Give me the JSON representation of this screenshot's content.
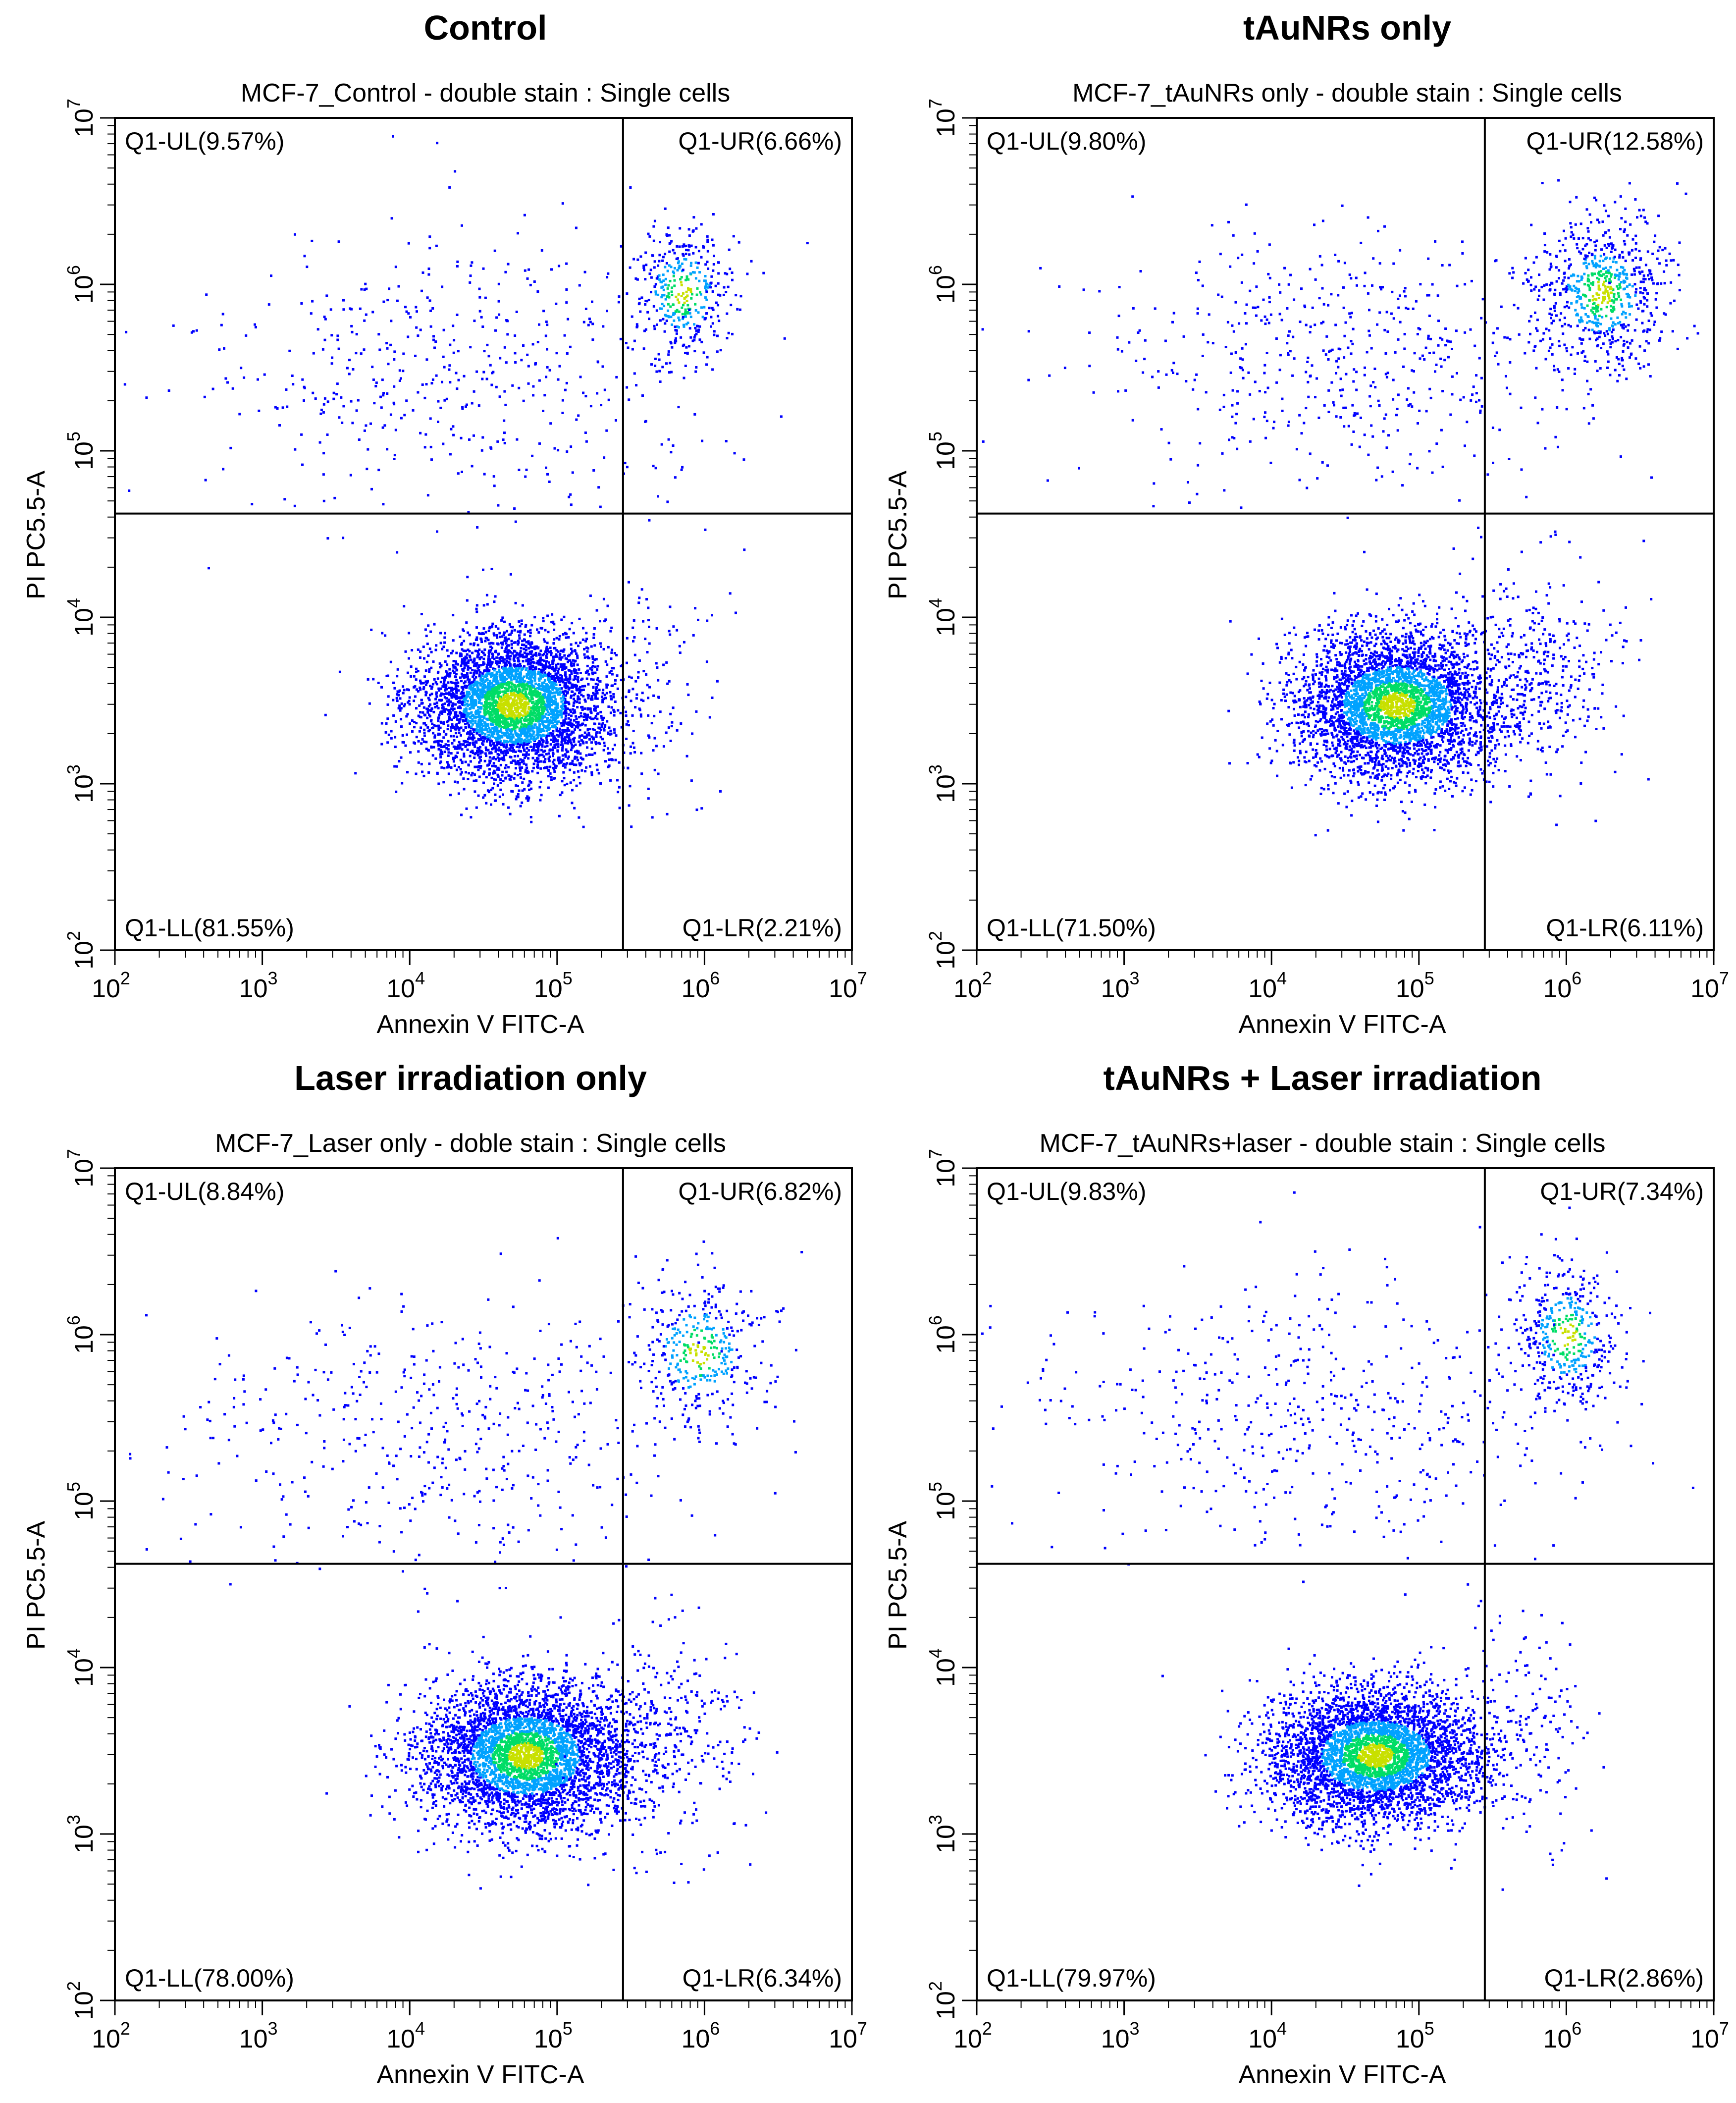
{
  "figure": {
    "panels_count": 4
  },
  "chart_data": [
    {
      "type": "scatter",
      "panel_title": "Control",
      "title": "MCF-7_Control - double stain : Single cells",
      "xlabel": "Annexin V FITC-A",
      "ylabel": "PI PC5.5-A",
      "xscale": "log",
      "yscale": "log",
      "xlim": [
        100,
        10000000
      ],
      "ylim": [
        100,
        10000000
      ],
      "xticks": [
        100,
        1000,
        10000,
        100000,
        1000000,
        10000000
      ],
      "yticks": [
        100,
        1000,
        10000,
        100000,
        1000000,
        10000000
      ],
      "quadrant_gate": {
        "x": 280000,
        "y": 42000
      },
      "quadrant_labels": {
        "UL": "Q1-UL(9.57%)",
        "UR": "Q1-UR(6.66%)",
        "LL": "Q1-LL(81.55%)",
        "LR": "Q1-LR(2.21%)"
      },
      "quadrant_percentages": {
        "UL": 9.57,
        "UR": 6.66,
        "LL": 81.55,
        "LR": 2.21
      },
      "clusters": [
        {
          "name": "main-population",
          "center": [
            50000,
            3000
          ],
          "spread_decades": [
            0.33,
            0.22
          ],
          "count": 4200
        },
        {
          "name": "upper-right-population",
          "center": [
            700000,
            900000
          ],
          "spread_decades": [
            0.18,
            0.2
          ],
          "count": 380
        },
        {
          "name": "upper-left-scatter",
          "center": [
            20000,
            300000
          ],
          "spread_decades": [
            0.9,
            0.4
          ],
          "count": 520
        },
        {
          "name": "lower-right-scatter",
          "center": [
            450000,
            4000
          ],
          "spread_decades": [
            0.22,
            0.35
          ],
          "count": 110
        }
      ],
      "colormap": [
        "#0000ff",
        "#00a2ff",
        "#00dd66",
        "#c8e000"
      ]
    },
    {
      "type": "scatter",
      "panel_title": "tAuNRs only",
      "title": "MCF-7_tAuNRs only - double stain : Single cells",
      "xlabel": "Annexin V FITC-A",
      "ylabel": "PI PC5.5-A",
      "xscale": "log",
      "yscale": "log",
      "xlim": [
        100,
        10000000
      ],
      "ylim": [
        100,
        10000000
      ],
      "xticks": [
        100,
        1000,
        10000,
        100000,
        1000000,
        10000000
      ],
      "yticks": [
        100,
        1000,
        10000,
        100000,
        1000000,
        10000000
      ],
      "quadrant_gate": {
        "x": 280000,
        "y": 42000
      },
      "quadrant_labels": {
        "UL": "Q1-UL(9.80%)",
        "UR": "Q1-UR(12.58%)",
        "LL": "Q1-LL(71.50%)",
        "LR": "Q1-LR(6.11%)"
      },
      "quadrant_percentages": {
        "UL": 9.8,
        "UR": 12.58,
        "LL": 71.5,
        "LR": 6.11
      },
      "clusters": [
        {
          "name": "main-population",
          "center": [
            70000,
            3000
          ],
          "spread_decades": [
            0.35,
            0.22
          ],
          "count": 3900
        },
        {
          "name": "upper-right-population",
          "center": [
            1700000,
            900000
          ],
          "spread_decades": [
            0.22,
            0.22
          ],
          "count": 700
        },
        {
          "name": "upper-left-scatter",
          "center": [
            30000,
            350000
          ],
          "spread_decades": [
            0.85,
            0.38
          ],
          "count": 540
        },
        {
          "name": "lower-right-scatter",
          "center": [
            700000,
            5000
          ],
          "spread_decades": [
            0.3,
            0.35
          ],
          "count": 330
        }
      ],
      "colormap": [
        "#0000ff",
        "#00a2ff",
        "#00dd66",
        "#c8e000"
      ]
    },
    {
      "type": "scatter",
      "panel_title": "Laser irradiation only",
      "title": "MCF-7_Laser only - doble stain : Single cells",
      "xlabel": "Annexin V FITC-A",
      "ylabel": "PI PC5.5-A",
      "xscale": "log",
      "yscale": "log",
      "xlim": [
        100,
        10000000
      ],
      "ylim": [
        100,
        10000000
      ],
      "xticks": [
        100,
        1000,
        10000,
        100000,
        1000000,
        10000000
      ],
      "yticks": [
        100,
        1000,
        10000,
        100000,
        1000000,
        10000000
      ],
      "quadrant_gate": {
        "x": 280000,
        "y": 42000
      },
      "quadrant_labels": {
        "UL": "Q1-UL(8.84%)",
        "UR": "Q1-UR(6.82%)",
        "LL": "Q1-LL(78.00%)",
        "LR": "Q1-LR(6.34%)"
      },
      "quadrant_percentages": {
        "UL": 8.84,
        "UR": 6.82,
        "LL": 78.0,
        "LR": 6.34
      },
      "clusters": [
        {
          "name": "main-population",
          "center": [
            60000,
            3000
          ],
          "spread_decades": [
            0.35,
            0.22
          ],
          "count": 4000
        },
        {
          "name": "upper-right-population",
          "center": [
            900000,
            800000
          ],
          "spread_decades": [
            0.22,
            0.22
          ],
          "count": 380
        },
        {
          "name": "upper-left-scatter",
          "center": [
            15000,
            250000
          ],
          "spread_decades": [
            0.95,
            0.4
          ],
          "count": 480
        },
        {
          "name": "lower-right-scatter",
          "center": [
            500000,
            4000
          ],
          "spread_decades": [
            0.3,
            0.35
          ],
          "count": 340
        }
      ],
      "colormap": [
        "#0000ff",
        "#00a2ff",
        "#00dd66",
        "#c8e000"
      ]
    },
    {
      "type": "scatter",
      "panel_title": "tAuNRs + Laser irradiation",
      "title": "MCF-7_tAuNRs+laser - double stain : Single cells",
      "xlabel": "Annexin V FITC-A",
      "ylabel": "PI PC5.5-A",
      "xscale": "log",
      "yscale": "log",
      "xlim": [
        100,
        10000000
      ],
      "ylim": [
        100,
        10000000
      ],
      "xticks": [
        100,
        1000,
        10000,
        100000,
        1000000,
        10000000
      ],
      "yticks": [
        100,
        1000,
        10000,
        100000,
        1000000,
        10000000
      ],
      "quadrant_gate": {
        "x": 280000,
        "y": 42000
      },
      "quadrant_labels": {
        "UL": "Q1-UL(9.83%)",
        "UR": "Q1-UR(7.34%)",
        "LL": "Q1-LL(79.97%)",
        "LR": "Q1-LR(2.86%)"
      },
      "quadrant_percentages": {
        "UL": 9.83,
        "UR": 7.34,
        "LL": 79.97,
        "LR": 2.86
      },
      "clusters": [
        {
          "name": "main-population",
          "center": [
            50000,
            3000
          ],
          "spread_decades": [
            0.35,
            0.2
          ],
          "count": 4100
        },
        {
          "name": "upper-right-population",
          "center": [
            1000000,
            1000000
          ],
          "spread_decades": [
            0.18,
            0.22
          ],
          "count": 420
        },
        {
          "name": "upper-left-scatter",
          "center": [
            20000,
            350000
          ],
          "spread_decades": [
            0.9,
            0.4
          ],
          "count": 520
        },
        {
          "name": "lower-right-scatter",
          "center": [
            500000,
            4000
          ],
          "spread_decades": [
            0.25,
            0.35
          ],
          "count": 150
        }
      ],
      "colormap": [
        "#0000ff",
        "#00a2ff",
        "#00dd66",
        "#c8e000"
      ]
    }
  ]
}
